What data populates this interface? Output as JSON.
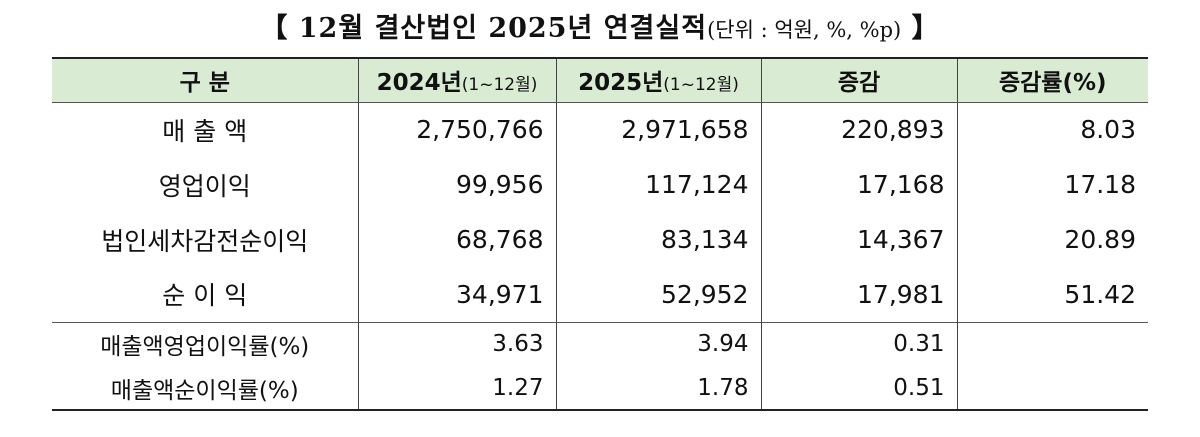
{
  "title": {
    "open_bracket": "【",
    "main": "12월 결산법인 2025년 연결실적",
    "unit": "(단위 : 억원, %, %p)",
    "close_bracket": "】"
  },
  "table": {
    "headers": {
      "category": "구  분",
      "y2024": "2024년",
      "y2024_period": "(1~12월)",
      "y2025": "2025년",
      "y2025_period": "(1~12월)",
      "change": "증감",
      "change_rate": "증감률(%)"
    },
    "rows": [
      {
        "label": "매 출 액",
        "y2024": "2,750,766",
        "y2025": "2,971,658",
        "change": "220,893",
        "rate": "8.03"
      },
      {
        "label": "영업이익",
        "y2024": "99,956",
        "y2025": "117,124",
        "change": "17,168",
        "rate": "17.18"
      },
      {
        "label": "법인세차감전순이익",
        "y2024": "68,768",
        "y2025": "83,134",
        "change": "14,367",
        "rate": "20.89"
      },
      {
        "label": "순 이 익",
        "y2024": "34,971",
        "y2025": "52,952",
        "change": "17,981",
        "rate": "51.42"
      }
    ],
    "ratio_rows": [
      {
        "label": "매출액영업이익률(%)",
        "y2024": "3.63",
        "y2025": "3.94",
        "change": "0.31"
      },
      {
        "label": "매출액순이익률(%)",
        "y2024": "1.27",
        "y2025": "1.78",
        "change": "0.51"
      }
    ]
  }
}
